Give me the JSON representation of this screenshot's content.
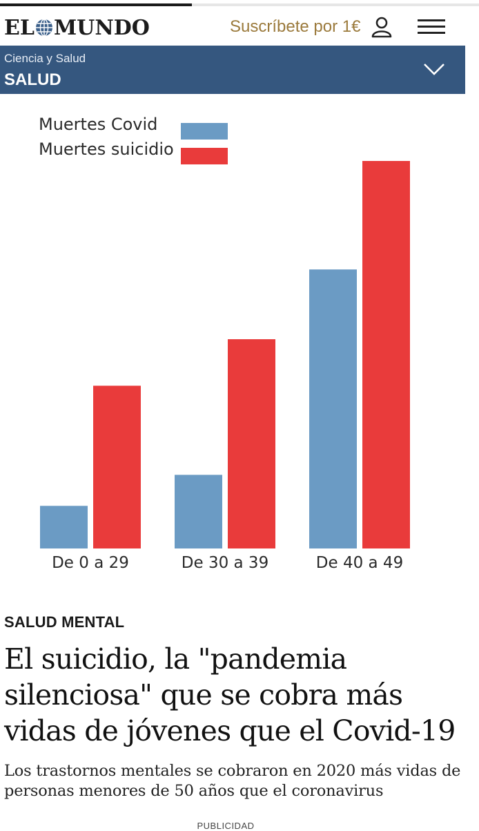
{
  "header": {
    "logo_left": "EL",
    "logo_right": "MUNDO",
    "subscribe_label": "Suscríbete por 1€",
    "icons": {
      "user": "user-icon",
      "menu": "hamburger-menu-icon",
      "logo": "globe-icon"
    }
  },
  "section": {
    "parent": "Ciencia y Salud",
    "name": "SALUD",
    "toggle_icon": "chevron-down-icon",
    "color": "#35577f"
  },
  "chart_data": {
    "type": "bar",
    "title": "",
    "xlabel": "",
    "ylabel": "",
    "categories": [
      "De 0 a 29",
      "De 30 a 39",
      "De 40 a 49"
    ],
    "series": [
      {
        "name": "Muertes Covid",
        "color": "#6b9bc4",
        "values": [
          11,
          19,
          72
        ]
      },
      {
        "name": "Muertes suicidio",
        "color": "#e93b3b",
        "values": [
          42,
          54,
          100
        ]
      }
    ],
    "ylim": [
      0,
      100
    ],
    "grid": false,
    "legend_position": "top-left",
    "tick_labels_y": false
  },
  "article": {
    "kicker": "SALUD MENTAL",
    "headline": "El suicidio, la \"pandemia silenciosa\" que se cobra más vidas de jóvenes que el Covid-19",
    "subhead": "Los trastornos mentales se cobraron en 2020 más vidas de personas menores de 50 años que el coronavirus"
  },
  "ad_label": "PUBLICIDAD"
}
